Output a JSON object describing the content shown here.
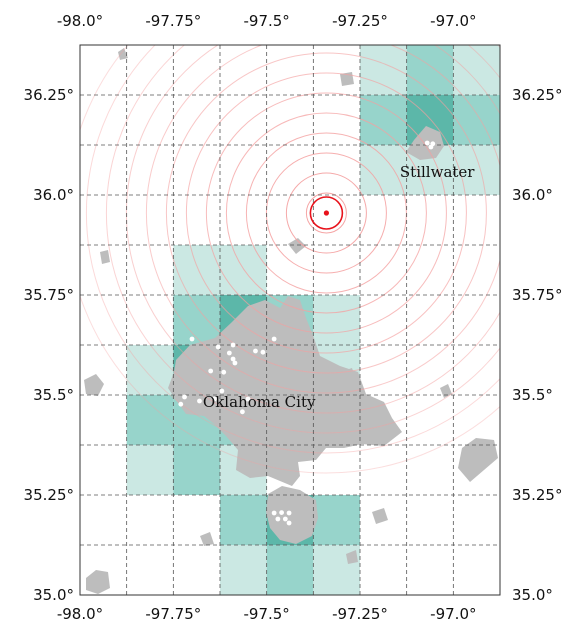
{
  "map": {
    "lon_range": [
      -98.0,
      -96.875
    ],
    "lat_range": [
      35.0,
      36.375
    ],
    "grid_step_lon": 0.125,
    "grid_step_lat": 0.125,
    "ticks_top": [
      "-98.0°",
      "-97.75°",
      "-97.5°",
      "-97.25°",
      "-97.0°"
    ],
    "ticks_bottom": [
      "-98.0°",
      "-97.75°",
      "-97.5°",
      "-97.25°",
      "-97.0°"
    ],
    "ticks_left": [
      "36.25°",
      "36.0°",
      "35.75°",
      "35.5°",
      "35.25°",
      "35.0°"
    ],
    "ticks_right": [
      "36.25°",
      "36.0°",
      "35.75°",
      "35.5°",
      "35.25°",
      "35.0°"
    ],
    "tick_lons": [
      -98.0,
      -97.75,
      -97.5,
      -97.25,
      -97.0
    ],
    "tick_lats": [
      36.25,
      36.0,
      35.75,
      35.5,
      35.25,
      35.0
    ],
    "cities": [
      {
        "name": "Stillwater",
        "lon": -97.07,
        "lat": 36.12
      },
      {
        "name": "Oklahoma City",
        "lon": -97.52,
        "lat": 35.47
      }
    ],
    "epicenter": {
      "lon": -97.34,
      "lat": 35.955,
      "color": "#e8121b"
    },
    "ring_color": "#f4a0a0",
    "ring_count": 13,
    "cell_colors": {
      "light": "#cbe8e3",
      "mid": "#97d4cb",
      "dark": "#5cb7a9"
    },
    "urban_color": "#bdbdbd",
    "grid_cells": [
      {
        "lon": -97.25,
        "lat": 36.25,
        "level": "light"
      },
      {
        "lon": -97.125,
        "lat": 36.25,
        "level": "mid"
      },
      {
        "lon": -97.0,
        "lat": 36.25,
        "level": "light"
      },
      {
        "lon": -97.25,
        "lat": 36.125,
        "level": "mid"
      },
      {
        "lon": -97.125,
        "lat": 36.125,
        "level": "dark"
      },
      {
        "lon": -97.0,
        "lat": 36.125,
        "level": "mid"
      },
      {
        "lon": -97.25,
        "lat": 36.0,
        "level": "light"
      },
      {
        "lon": -97.125,
        "lat": 36.0,
        "level": "light"
      },
      {
        "lon": -97.0,
        "lat": 36.0,
        "level": "light"
      },
      {
        "lon": -97.75,
        "lat": 35.75,
        "level": "light"
      },
      {
        "lon": -97.625,
        "lat": 35.75,
        "level": "light"
      },
      {
        "lon": -97.75,
        "lat": 35.625,
        "level": "mid"
      },
      {
        "lon": -97.625,
        "lat": 35.625,
        "level": "dark"
      },
      {
        "lon": -97.5,
        "lat": 35.625,
        "level": "mid"
      },
      {
        "lon": -97.375,
        "lat": 35.625,
        "level": "light"
      },
      {
        "lon": -97.875,
        "lat": 35.5,
        "level": "light"
      },
      {
        "lon": -97.75,
        "lat": 35.5,
        "level": "dark"
      },
      {
        "lon": -97.625,
        "lat": 35.5,
        "level": "dark"
      },
      {
        "lon": -97.5,
        "lat": 35.5,
        "level": "mid"
      },
      {
        "lon": -97.375,
        "lat": 35.5,
        "level": "light"
      },
      {
        "lon": -97.875,
        "lat": 35.375,
        "level": "mid"
      },
      {
        "lon": -97.75,
        "lat": 35.375,
        "level": "mid"
      },
      {
        "lon": -97.625,
        "lat": 35.375,
        "level": "mid"
      },
      {
        "lon": -97.5,
        "lat": 35.375,
        "level": "light"
      },
      {
        "lon": -97.875,
        "lat": 35.25,
        "level": "light"
      },
      {
        "lon": -97.75,
        "lat": 35.25,
        "level": "mid"
      },
      {
        "lon": -97.625,
        "lat": 35.25,
        "level": "light"
      },
      {
        "lon": -97.625,
        "lat": 35.125,
        "level": "mid"
      },
      {
        "lon": -97.5,
        "lat": 35.125,
        "level": "dark"
      },
      {
        "lon": -97.375,
        "lat": 35.125,
        "level": "mid"
      },
      {
        "lon": -97.625,
        "lat": 35.0,
        "level": "light"
      },
      {
        "lon": -97.5,
        "lat": 35.0,
        "level": "mid"
      },
      {
        "lon": -97.375,
        "lat": 35.0,
        "level": "light"
      }
    ],
    "stations": [
      {
        "lon": -97.63,
        "lat": 35.62
      },
      {
        "lon": -97.59,
        "lat": 35.625
      },
      {
        "lon": -97.6,
        "lat": 35.605
      },
      {
        "lon": -97.59,
        "lat": 35.59
      },
      {
        "lon": -97.585,
        "lat": 35.58
      },
      {
        "lon": -97.53,
        "lat": 35.61
      },
      {
        "lon": -97.51,
        "lat": 35.607
      },
      {
        "lon": -97.48,
        "lat": 35.64
      },
      {
        "lon": -97.7,
        "lat": 35.64
      },
      {
        "lon": -97.65,
        "lat": 35.56
      },
      {
        "lon": -97.615,
        "lat": 35.557
      },
      {
        "lon": -97.62,
        "lat": 35.51
      },
      {
        "lon": -97.72,
        "lat": 35.495
      },
      {
        "lon": -97.73,
        "lat": 35.477
      },
      {
        "lon": -97.68,
        "lat": 35.485
      },
      {
        "lon": -97.64,
        "lat": 35.49
      },
      {
        "lon": -97.55,
        "lat": 35.49
      },
      {
        "lon": -97.565,
        "lat": 35.458
      },
      {
        "lon": -97.48,
        "lat": 35.205
      },
      {
        "lon": -97.46,
        "lat": 35.206
      },
      {
        "lon": -97.44,
        "lat": 35.205
      },
      {
        "lon": -97.47,
        "lat": 35.19
      },
      {
        "lon": -97.45,
        "lat": 35.19
      },
      {
        "lon": -97.44,
        "lat": 35.18
      },
      {
        "lon": -97.07,
        "lat": 36.13
      },
      {
        "lon": -97.06,
        "lat": 36.12
      },
      {
        "lon": -97.055,
        "lat": 36.128
      }
    ]
  }
}
